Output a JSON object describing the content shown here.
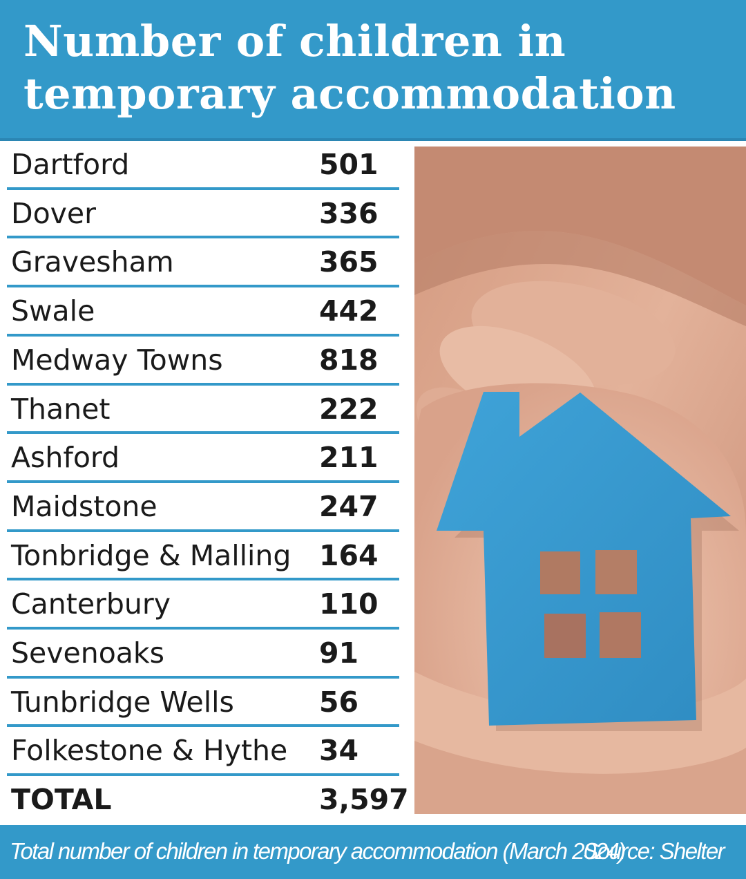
{
  "header": {
    "title": "Number of children in temporary accommodation"
  },
  "chart_data": {
    "type": "table",
    "title": "Number of children in temporary accommodation",
    "rows": [
      {
        "label": "Dartford",
        "value": "501"
      },
      {
        "label": "Dover",
        "value": "336"
      },
      {
        "label": "Gravesham",
        "value": "365"
      },
      {
        "label": "Swale",
        "value": "442"
      },
      {
        "label": "Medway Towns",
        "value": "818"
      },
      {
        "label": "Thanet",
        "value": "222"
      },
      {
        "label": "Ashford",
        "value": "211"
      },
      {
        "label": "Maidstone",
        "value": "247"
      },
      {
        "label": "Tonbridge & Malling",
        "value": "164"
      },
      {
        "label": "Canterbury",
        "value": "110"
      },
      {
        "label": "Sevenoaks",
        "value": "91"
      },
      {
        "label": "Tunbridge Wells",
        "value": "56"
      },
      {
        "label": "Folkestone & Hythe",
        "value": "34"
      }
    ],
    "total": {
      "label": "TOTAL",
      "value": "3,597"
    }
  },
  "footer": {
    "caption": "Total number of children in temporary accommodation (March 2024)",
    "source": "Source: Shelter"
  },
  "colors": {
    "accent": "#3399c9",
    "house": "#3a9bd0"
  },
  "photo": {
    "icon": "hands-holding-house-icon"
  }
}
